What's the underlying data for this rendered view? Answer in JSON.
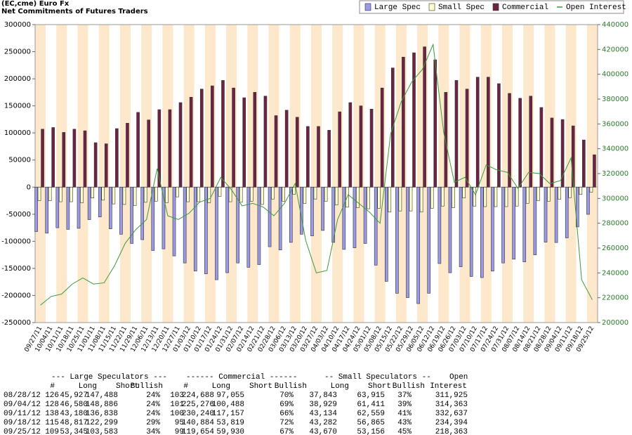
{
  "chart_data": {
    "type": "bar",
    "title": "(EC,cme) Euro Fx",
    "subtitle": "Net Commitments of Futures Traders",
    "categories": [
      "09/27/11",
      "10/04/11",
      "10/11/11",
      "10/18/11",
      "10/25/11",
      "11/01/11",
      "11/08/11",
      "11/15/11",
      "11/22/11",
      "11/29/11",
      "12/06/11",
      "12/13/11",
      "12/20/11",
      "12/27/11",
      "01/03/12",
      "01/10/12",
      "01/17/12",
      "01/24/12",
      "01/31/12",
      "02/07/12",
      "02/14/12",
      "02/21/12",
      "02/28/12",
      "03/06/12",
      "03/13/12",
      "03/20/12",
      "03/27/12",
      "04/03/12",
      "04/10/12",
      "04/17/12",
      "04/24/12",
      "05/01/12",
      "05/08/12",
      "05/15/12",
      "05/22/12",
      "05/29/12",
      "06/05/12",
      "06/12/12",
      "06/19/12",
      "06/26/12",
      "07/03/12",
      "07/10/12",
      "07/17/12",
      "07/24/12",
      "07/31/12",
      "08/07/12",
      "08/14/12",
      "08/21/12",
      "08/28/12",
      "09/04/12",
      "09/11/12",
      "09/18/12",
      "09/25/12"
    ],
    "series": [
      {
        "name": "Large Spec",
        "type": "bar",
        "color": "#9a9ae6",
        "values": [
          -82000,
          -85000,
          -75000,
          -78000,
          -76000,
          -60000,
          -55000,
          -77000,
          -87000,
          -104000,
          -97000,
          -117000,
          -114000,
          -127000,
          -140000,
          -155000,
          -160000,
          -171000,
          -158000,
          -140000,
          -148000,
          -143000,
          -110000,
          -116000,
          -102000,
          -87000,
          -90000,
          -80000,
          -102000,
          -115000,
          -112000,
          -104000,
          -144000,
          -174000,
          -196000,
          -204000,
          -215000,
          -196000,
          -141000,
          -158000,
          -147000,
          -165000,
          -167000,
          -155000,
          -140000,
          -133000,
          -138000,
          -125000,
          -101561,
          -102306,
          -93658,
          -73482,
          -50238
        ]
      },
      {
        "name": "Small Spec",
        "type": "bar",
        "color": "#ffffcc",
        "values": [
          -25000,
          -25000,
          -27000,
          -27000,
          -29000,
          -20000,
          -24000,
          -31000,
          -32000,
          -34000,
          -28000,
          -26000,
          -29000,
          -18000,
          -27000,
          -27000,
          -29000,
          -17000,
          -27000,
          -28000,
          -26000,
          -32000,
          -22000,
          -26000,
          -13000,
          -30000,
          -22000,
          -26000,
          -33000,
          -37000,
          -38000,
          -40000,
          -39000,
          -46000,
          -44000,
          -44000,
          -46000,
          -39000,
          -35000,
          -38000,
          -20000,
          -35000,
          -36000,
          -36000,
          -36000,
          -35000,
          -30000,
          -25000,
          -26072,
          -22482,
          -19425,
          -13583,
          -9486
        ]
      },
      {
        "name": "Commercial",
        "type": "bar",
        "color": "#6e2342",
        "values": [
          107000,
          110000,
          101000,
          107000,
          104000,
          82000,
          80000,
          108000,
          118000,
          138000,
          124000,
          143000,
          143000,
          156000,
          166000,
          181000,
          187000,
          197000,
          183000,
          165000,
          175000,
          168000,
          132000,
          142000,
          129000,
          112000,
          112000,
          105000,
          139000,
          156000,
          150000,
          144000,
          183000,
          220000,
          240000,
          248000,
          259000,
          235000,
          175000,
          197000,
          181000,
          203000,
          203000,
          191000,
          173000,
          164000,
          168000,
          147000,
          127633,
          124788,
          113083,
          87065,
          59724
        ]
      },
      {
        "name": "Open Interest",
        "type": "line",
        "axis": "y2",
        "color": "#3a9a3a",
        "values": [
          214000,
          221000,
          223000,
          231000,
          236000,
          231000,
          232000,
          246000,
          264000,
          275000,
          283000,
          324000,
          286000,
          283000,
          288000,
          297000,
          300000,
          317000,
          307000,
          294000,
          296000,
          293000,
          286000,
          296000,
          312000,
          266000,
          240000,
          242000,
          283000,
          303000,
          296000,
          289000,
          280000,
          352000,
          378000,
          394000,
          404000,
          424000,
          353000,
          313000,
          317000,
          303000,
          327000,
          323000,
          321000,
          308000,
          321000,
          320000,
          311925,
          314363,
          332637,
          234394,
          218363
        ]
      }
    ],
    "ylim": [
      -250000,
      300000
    ],
    "yticks": [
      -250000,
      -200000,
      -150000,
      -100000,
      -50000,
      0,
      50000,
      100000,
      150000,
      200000,
      250000,
      300000
    ],
    "y2lim": [
      200000,
      440000
    ],
    "y2ticks": [
      200000,
      220000,
      240000,
      260000,
      280000,
      300000,
      320000,
      340000,
      360000,
      380000,
      400000,
      420000,
      440000
    ],
    "legend": "top-right",
    "grid": false
  },
  "table": {
    "group_headers": [
      "--- Large Speculators ---",
      "------ Commercial ------",
      "-- Small Speculators --",
      "Open"
    ],
    "columns": [
      "#",
      "Long",
      "Short",
      "Bullish",
      "#",
      "Long",
      "Short",
      "Bullish",
      "Long",
      "Short",
      "Bullish",
      "Interest"
    ],
    "rows": [
      [
        "08/28/12",
        "126",
        "45,927",
        "147,488",
        "24%",
        "103",
        "224,688",
        "97,055",
        "70%",
        "37,843",
        "63,915",
        "37%",
        "311,925"
      ],
      [
        "09/04/12",
        "128",
        "46,580",
        "148,886",
        "24%",
        "101",
        "225,276",
        "100,488",
        "69%",
        "38,929",
        "61,411",
        "39%",
        "314,363"
      ],
      [
        "09/11/12",
        "138",
        "43,180",
        "136,838",
        "24%",
        "100",
        "230,240",
        "117,157",
        "66%",
        "43,134",
        "62,559",
        "41%",
        "332,637"
      ],
      [
        "09/18/12",
        "115",
        "48,817",
        "122,299",
        "29%",
        "95",
        "140,884",
        "53,819",
        "72%",
        "43,282",
        "56,865",
        "43%",
        "234,394"
      ],
      [
        "09/25/12",
        "109",
        "53,345",
        "103,583",
        "34%",
        "99",
        "119,654",
        "59,930",
        "67%",
        "43,670",
        "53,156",
        "45%",
        "218,363"
      ]
    ]
  }
}
